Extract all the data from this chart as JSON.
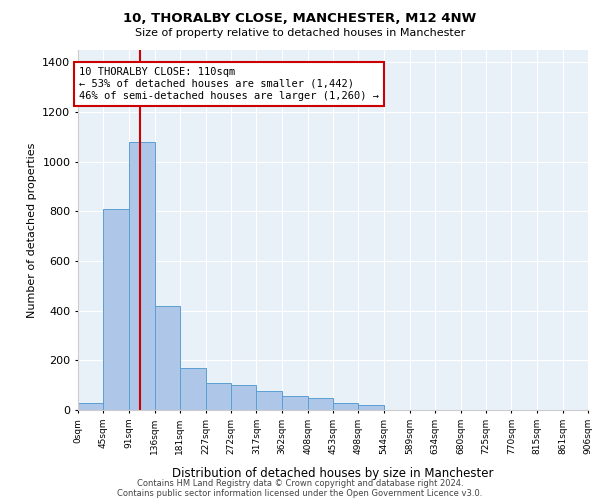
{
  "title1": "10, THORALBY CLOSE, MANCHESTER, M12 4NW",
  "title2": "Size of property relative to detached houses in Manchester",
  "xlabel": "Distribution of detached houses by size in Manchester",
  "ylabel": "Number of detached properties",
  "annotation_line1": "10 THORALBY CLOSE: 110sqm",
  "annotation_line2": "← 53% of detached houses are smaller (1,442)",
  "annotation_line3": "46% of semi-detached houses are larger (1,260) →",
  "bin_edges": [
    0,
    45,
    91,
    136,
    181,
    227,
    272,
    317,
    362,
    408,
    453,
    498,
    544,
    589,
    634,
    680,
    725,
    770,
    815,
    861,
    906
  ],
  "bar_heights": [
    30,
    810,
    1080,
    420,
    170,
    110,
    100,
    75,
    55,
    50,
    30,
    20,
    0,
    0,
    0,
    0,
    0,
    0,
    0,
    0
  ],
  "bar_color": "#aec6e8",
  "bar_edge_color": "#5a9fd4",
  "vline_color": "#cc0000",
  "vline_x": 110,
  "annotation_box_color": "#ffffff",
  "annotation_box_edge_color": "#cc0000",
  "background_color": "#e8f0f8",
  "ylim": [
    0,
    1450
  ],
  "yticks": [
    0,
    200,
    400,
    600,
    800,
    1000,
    1200,
    1400
  ],
  "footer1": "Contains HM Land Registry data © Crown copyright and database right 2024.",
  "footer2": "Contains public sector information licensed under the Open Government Licence v3.0."
}
